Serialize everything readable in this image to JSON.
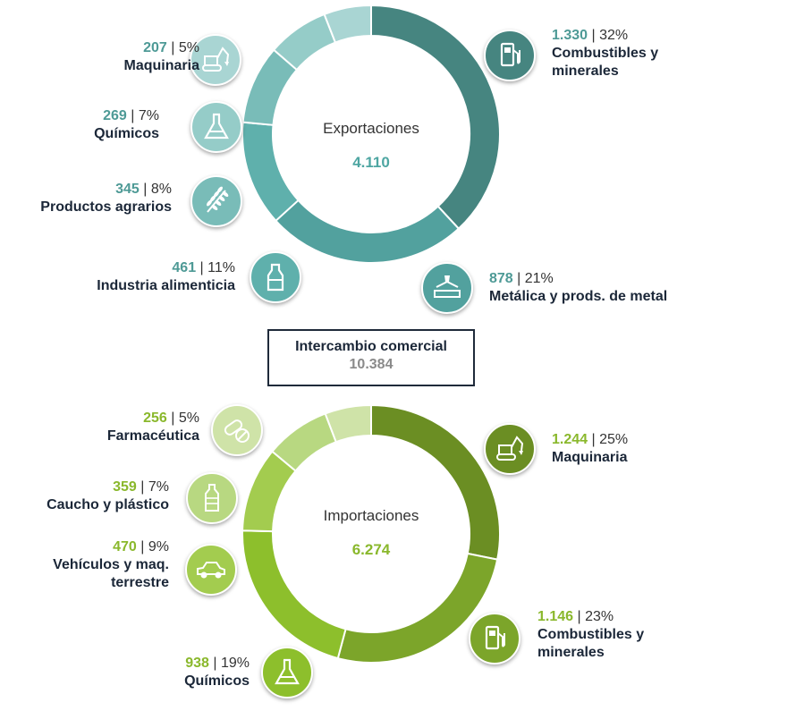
{
  "exports": {
    "title": "Exportaciones",
    "total": "4.110",
    "accent": "#4e9a96",
    "items": [
      {
        "value": "1.330",
        "pct": "32%",
        "name": [
          "Combustibles y",
          "minerales"
        ],
        "icon": "fuel-pump-icon",
        "color": "#468580"
      },
      {
        "value": "878",
        "pct": "21%",
        "name": [
          "Metálica y prods. de metal"
        ],
        "icon": "metal-press-icon",
        "color": "#52a19e"
      },
      {
        "value": "461",
        "pct": "11%",
        "name": [
          "Industria alimenticia"
        ],
        "icon": "milk-bottle-icon",
        "color": "#5fb0ac"
      },
      {
        "value": "345",
        "pct": "8%",
        "name": [
          "Productos agrarios"
        ],
        "icon": "wheat-icon",
        "color": "#79bcb8"
      },
      {
        "value": "269",
        "pct": "7%",
        "name": [
          "Químicos"
        ],
        "icon": "flask-icon",
        "color": "#95ccc8"
      },
      {
        "value": "207",
        "pct": "5%",
        "name": [
          "Maquinaria"
        ],
        "icon": "excavator-icon",
        "color": "#a9d5d3"
      }
    ]
  },
  "trade": {
    "title": "Intercambio comercial",
    "value": "10.384"
  },
  "imports": {
    "title": "Importaciones",
    "total": "6.274",
    "accent": "#8ab82c",
    "items": [
      {
        "value": "1.244",
        "pct": "25%",
        "name": [
          "Maquinaria"
        ],
        "icon": "excavator-icon",
        "color": "#6b8e23"
      },
      {
        "value": "1.146",
        "pct": "23%",
        "name": [
          "Combustibles y",
          "minerales"
        ],
        "icon": "fuel-pump-icon",
        "color": "#7ca52a"
      },
      {
        "value": "938",
        "pct": "19%",
        "name": [
          "Químicos"
        ],
        "icon": "flask-icon",
        "color": "#8dbf2c"
      },
      {
        "value": "470",
        "pct": "9%",
        "name": [
          "Vehículos y maq.",
          "terrestre"
        ],
        "icon": "car-icon",
        "color": "#a3cc4f"
      },
      {
        "value": "359",
        "pct": "7%",
        "name": [
          "Caucho y plástico"
        ],
        "icon": "plastic-bottle-icon",
        "color": "#b8d881"
      },
      {
        "value": "256",
        "pct": "5%",
        "name": [
          "Farmacéutica"
        ],
        "icon": "pills-icon",
        "color": "#cfe3a8"
      }
    ]
  },
  "chart_data": [
    {
      "type": "pie",
      "title": "Exportaciones",
      "total": 4110,
      "categories": [
        "Combustibles y minerales",
        "Metálica y prods. de metal",
        "Industria alimenticia",
        "Productos agrarios",
        "Químicos",
        "Maquinaria"
      ],
      "values": [
        1330,
        878,
        461,
        345,
        269,
        207
      ],
      "percentages": [
        32,
        21,
        11,
        8,
        7,
        5
      ]
    },
    {
      "type": "pie",
      "title": "Importaciones",
      "total": 6274,
      "categories": [
        "Maquinaria",
        "Combustibles y minerales",
        "Químicos",
        "Vehículos y maq. terrestre",
        "Caucho y plástico",
        "Farmacéutica"
      ],
      "values": [
        1244,
        1146,
        938,
        470,
        359,
        256
      ],
      "percentages": [
        25,
        23,
        19,
        9,
        7,
        5
      ]
    }
  ]
}
